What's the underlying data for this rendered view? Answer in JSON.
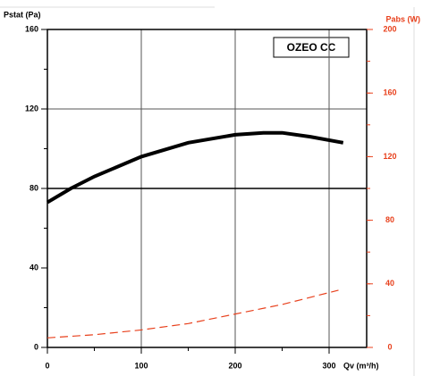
{
  "chart_data": {
    "type": "line",
    "title": "OZEO CC",
    "y_label": "Pstat (Pa)",
    "y2_label": "Pabs (W)",
    "x_label": "Qv (m³/h)",
    "xlim": [
      0,
      340
    ],
    "xticks": [
      0,
      100,
      200,
      300
    ],
    "xminor": 50,
    "ylim": [
      0,
      160
    ],
    "yticks": [
      0,
      40,
      80,
      120,
      160
    ],
    "yminor": 20,
    "y2lim": [
      0,
      200
    ],
    "y2ticks": [
      0,
      40,
      80,
      120,
      160,
      200
    ],
    "y2minor": 20,
    "xgrid": [
      100,
      200,
      300
    ],
    "ygrid": [
      80,
      120
    ],
    "y2color": "#e8401c",
    "series": [
      {
        "name": "Pstat",
        "color": "#000000",
        "dashed": false,
        "x": [
          0,
          25,
          50,
          100,
          150,
          200,
          230,
          250,
          280,
          315
        ],
        "values": [
          73,
          80,
          86,
          96,
          103,
          107,
          108,
          108,
          106,
          103
        ]
      },
      {
        "name": "Pabs",
        "color": "#e8401c",
        "dashed": true,
        "axis": "y2",
        "x": [
          0,
          50,
          100,
          150,
          200,
          250,
          310
        ],
        "values": [
          6,
          8,
          11,
          15,
          21,
          27,
          36
        ]
      }
    ]
  }
}
